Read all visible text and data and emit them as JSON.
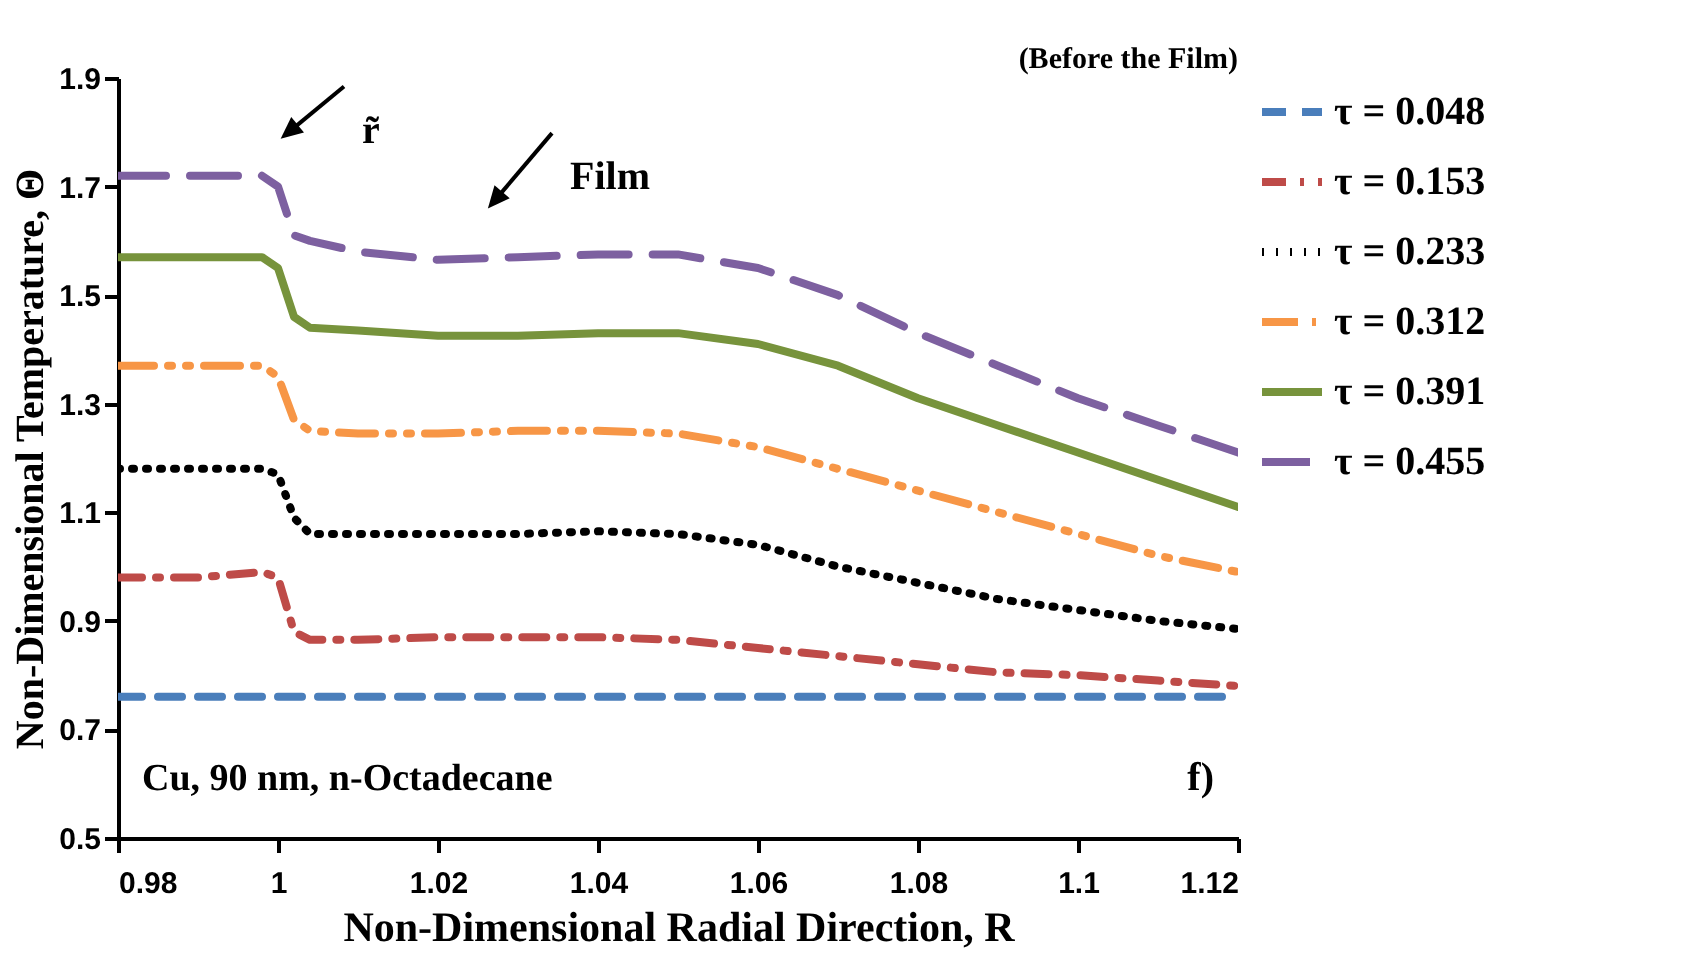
{
  "chart_data": {
    "type": "line",
    "xlabel": "Non-Dimensional Radial Direction, R",
    "ylabel": "Non-Dimensional Temperature, Θ",
    "x": [
      0.98,
      0.99,
      0.998,
      1.0,
      1.002,
      1.004,
      1.01,
      1.02,
      1.03,
      1.04,
      1.05,
      1.06,
      1.07,
      1.08,
      1.09,
      1.1,
      1.11,
      1.12
    ],
    "series": [
      {
        "name": "τ = 0.048",
        "color": "#4a7ebb",
        "line_style": "dashed",
        "values": [
          0.76,
          0.76,
          0.76,
          0.76,
          0.76,
          0.76,
          0.76,
          0.76,
          0.76,
          0.76,
          0.76,
          0.76,
          0.76,
          0.76,
          0.76,
          0.76,
          0.76,
          0.76
        ]
      },
      {
        "name": "τ = 0.153",
        "color": "#be4b48",
        "line_style": "dashdot",
        "values": [
          0.98,
          0.98,
          0.99,
          0.98,
          0.88,
          0.865,
          0.865,
          0.87,
          0.87,
          0.87,
          0.865,
          0.85,
          0.835,
          0.82,
          0.805,
          0.8,
          0.79,
          0.78
        ]
      },
      {
        "name": "τ = 0.233",
        "color": "#000000",
        "line_style": "dotted",
        "values": [
          1.18,
          1.18,
          1.18,
          1.17,
          1.09,
          1.06,
          1.06,
          1.06,
          1.06,
          1.065,
          1.06,
          1.04,
          1.0,
          0.97,
          0.94,
          0.92,
          0.9,
          0.885
        ]
      },
      {
        "name": "τ = 0.312",
        "color": "#f79646",
        "line_style": "dashdotdot",
        "values": [
          1.37,
          1.37,
          1.37,
          1.35,
          1.27,
          1.25,
          1.245,
          1.245,
          1.25,
          1.25,
          1.245,
          1.22,
          1.18,
          1.14,
          1.1,
          1.06,
          1.02,
          0.99
        ]
      },
      {
        "name": "τ = 0.391",
        "color": "#77933c",
        "line_style": "solid",
        "values": [
          1.57,
          1.57,
          1.57,
          1.55,
          1.46,
          1.44,
          1.435,
          1.425,
          1.425,
          1.43,
          1.43,
          1.41,
          1.37,
          1.31,
          1.26,
          1.21,
          1.16,
          1.11
        ]
      },
      {
        "name": "τ = 0.455",
        "color": "#7d60a0",
        "line_style": "longdash",
        "values": [
          1.72,
          1.72,
          1.72,
          1.7,
          1.61,
          1.6,
          1.58,
          1.565,
          1.57,
          1.575,
          1.575,
          1.55,
          1.5,
          1.43,
          1.37,
          1.31,
          1.26,
          1.21
        ]
      }
    ],
    "xlim": [
      0.98,
      1.12
    ],
    "xticks": [
      0.98,
      1,
      1.02,
      1.04,
      1.06,
      1.08,
      1.1,
      1.12
    ],
    "ylim": [
      0.5,
      1.9
    ],
    "yticks": [
      0.5,
      0.7,
      0.9,
      1.1,
      1.3,
      1.5,
      1.7,
      1.9
    ],
    "grid": false,
    "legend": "right",
    "annotations": [
      {
        "text": "r̃",
        "x": 1.001,
        "y": 1.7
      },
      {
        "text": "Film",
        "x": 1.027,
        "y": 1.57
      },
      "(Before the Film)",
      "Cu, 90 nm, n-Octadecane",
      "f)"
    ]
  }
}
